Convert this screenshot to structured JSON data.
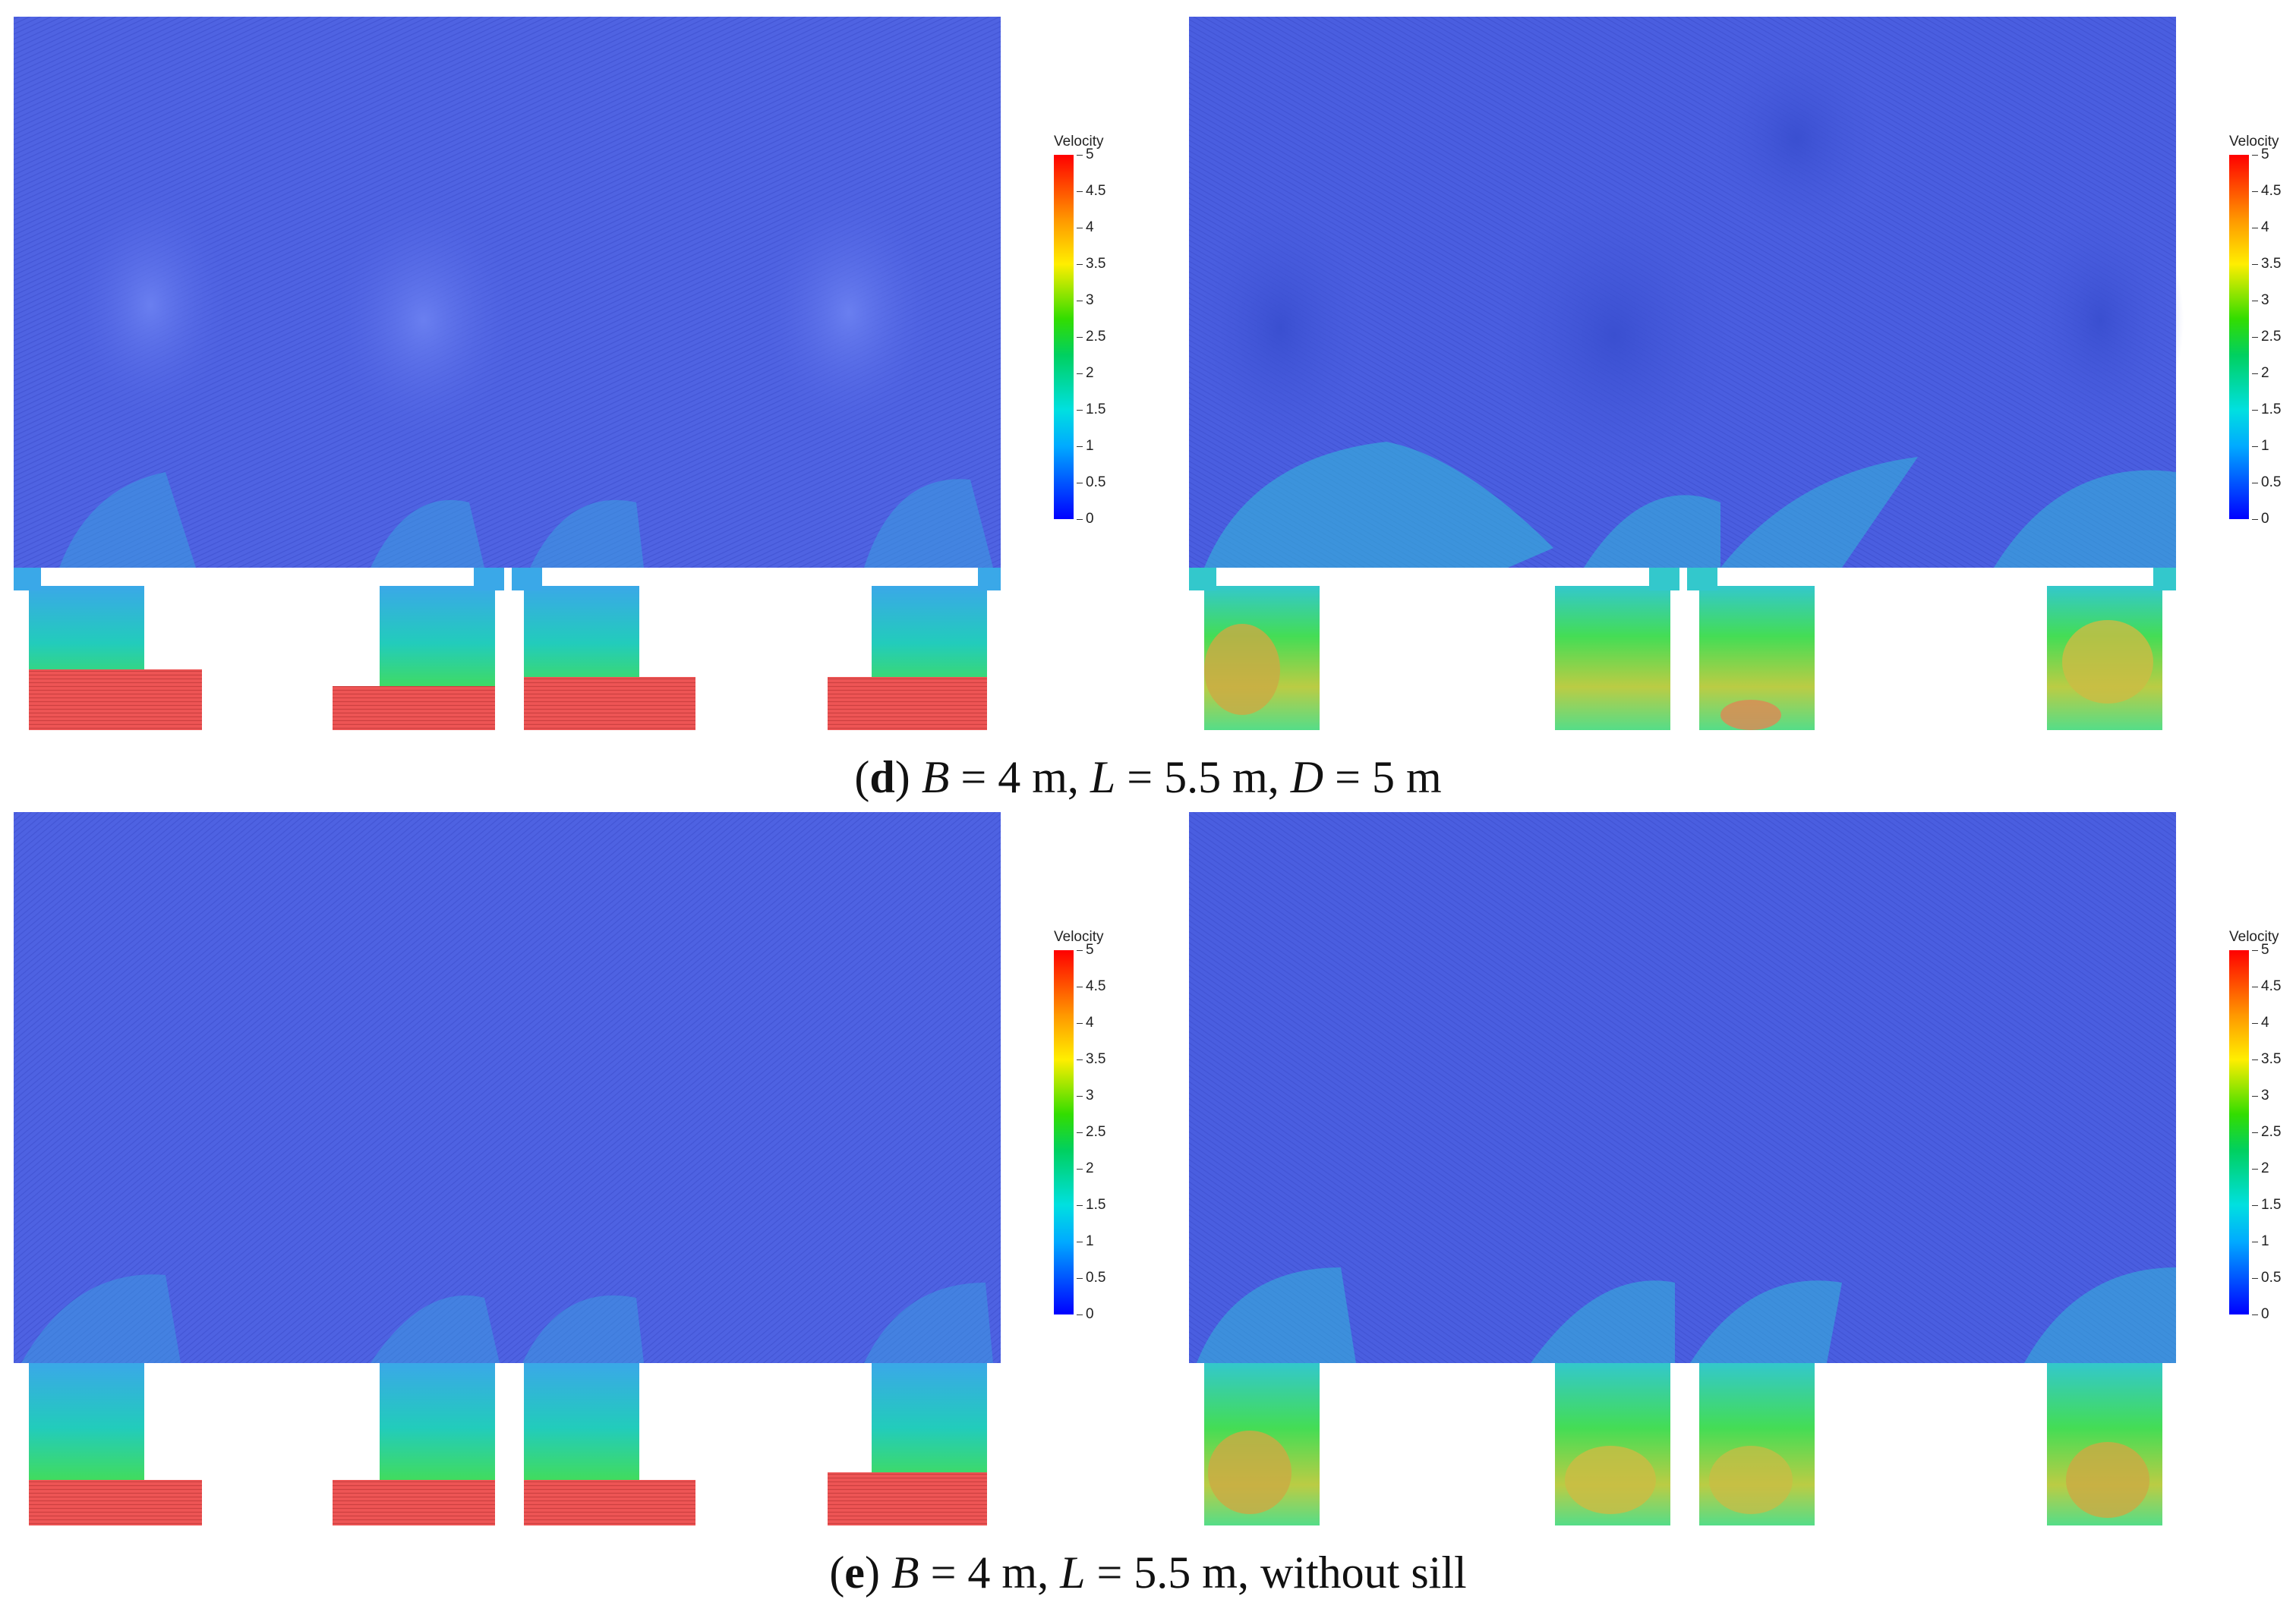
{
  "colorbar": {
    "title": "Velocity",
    "ticks": [
      "5",
      "4.5",
      "4",
      "3.5",
      "3",
      "2.5",
      "2",
      "1.5",
      "1",
      "0.5",
      "0"
    ]
  },
  "captions": {
    "d": {
      "label": "d",
      "pre": "(",
      "post": ") ",
      "B": "B",
      "B_val": " = 4 m, ",
      "L": "L",
      "L_val": " = 5.5 m, ",
      "D": "D",
      "D_val": " = 5 m"
    },
    "e": {
      "label": "e",
      "pre": "(",
      "post": ") ",
      "B": "B",
      "B_val": " = 4 m, ",
      "L": "L",
      "L_val": " = 5.5 m, without sill"
    }
  },
  "colors": {
    "basin": "#4a5ee0",
    "basin_light": "#5a7ae8",
    "jet": "#22ccdd",
    "green": "#33d84a",
    "yellow": "#ddcc33",
    "red": "#ee5555"
  }
}
